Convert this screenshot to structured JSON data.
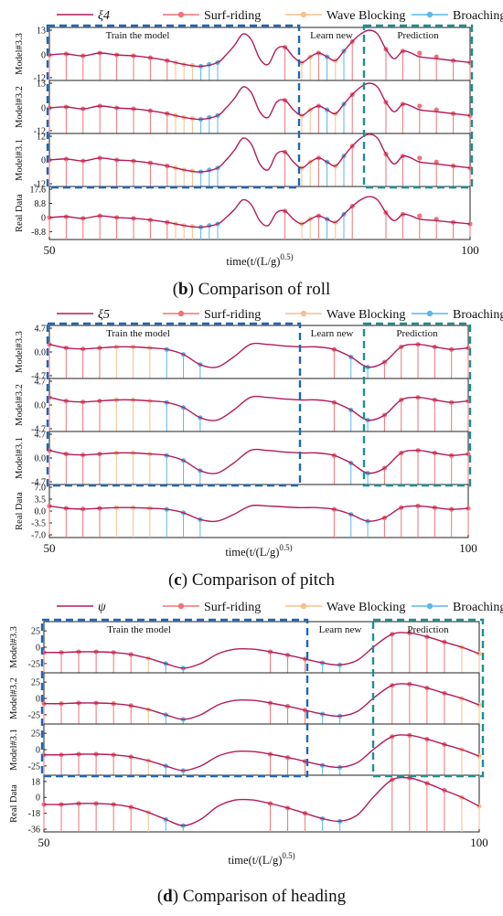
{
  "colors": {
    "xi": "#b31b5c",
    "surf_riding": "#f0737a",
    "wave_blocking": "#f6c08e",
    "broaching": "#5ab8ea",
    "box": "#1f66b3",
    "box_pred": "#1e8f8f"
  },
  "legend": {
    "surf_riding": "Surf-riding",
    "wave_blocking": "Wave Blocking",
    "broaching": "Broaching"
  },
  "chart_data": [
    {
      "type": "line",
      "panel": "b",
      "legend_symbol": "ξ4",
      "caption": "Comparison of roll",
      "xlabel": "time(t/(L/g)^0.5)",
      "x_ticks": [
        "50",
        "100"
      ],
      "xlim": [
        50,
        100
      ],
      "box_labels": [
        "Train the model",
        "Learn new",
        "Prediction"
      ],
      "subplots": [
        {
          "label": "Model#3.3",
          "ticks": [
            "13",
            "0",
            "-12"
          ],
          "ylim": [
            -12,
            13
          ]
        },
        {
          "label": "Model#3.2",
          "ticks": [
            "13",
            "0",
            "-12"
          ],
          "ylim": [
            -12,
            13
          ]
        },
        {
          "label": "Model#3.1",
          "ticks": [
            "12",
            "0",
            "-12"
          ],
          "ylim": [
            -12,
            12
          ]
        },
        {
          "label": "Real Data",
          "ticks": [
            "17.6",
            "8.8",
            "0",
            "-8.8"
          ],
          "ylim": [
            -12,
            17.6
          ]
        }
      ],
      "series": [
        {
          "name": "ξ4",
          "x": [
            50,
            52,
            54,
            56,
            58,
            60,
            62,
            64,
            66,
            68,
            70,
            71,
            72,
            73,
            74,
            75,
            76,
            77,
            78,
            79,
            80,
            81,
            82,
            83,
            84,
            85,
            86,
            87,
            88,
            89,
            90,
            91,
            92,
            93,
            94,
            96,
            98,
            100
          ],
          "y": [
            0,
            0.5,
            -0.5,
            1,
            0,
            -0.5,
            -1.5,
            -3,
            -5,
            -6,
            -4,
            0,
            5,
            11,
            8,
            -2,
            -5,
            3,
            4,
            -1,
            -4,
            -1,
            1,
            -1,
            -3,
            2,
            7,
            11,
            13,
            11,
            3,
            -2,
            2,
            1,
            -1,
            -2,
            -3,
            -4
          ]
        },
        {
          "name": "Surf-riding",
          "x": [
            50,
            52,
            54,
            56,
            58,
            60,
            62,
            64,
            78,
            82,
            86,
            90,
            92,
            94,
            96,
            98,
            100
          ],
          "y": [
            0,
            0.5,
            -0.5,
            1,
            0,
            -0.5,
            -1.5,
            -3,
            4,
            1,
            7,
            3,
            2,
            1,
            -1,
            -3,
            -4
          ]
        },
        {
          "name": "Wave Blocking",
          "x": [
            65,
            66,
            67,
            80,
            81,
            84
          ],
          "y": [
            -4,
            -5,
            -5.5,
            -4,
            -1,
            -3
          ]
        },
        {
          "name": "Broaching",
          "x": [
            68,
            69,
            70,
            83,
            85
          ],
          "y": [
            -6,
            -5,
            -4,
            -1,
            2
          ]
        }
      ]
    },
    {
      "type": "line",
      "panel": "c",
      "legend_symbol": "ξ5",
      "caption": "Comparison of pitch",
      "xlabel": "time(t/(L/g)^0.5)",
      "x_ticks": [
        "50",
        "100"
      ],
      "xlim": [
        50,
        100
      ],
      "box_labels": [
        "Train the model",
        "Learn new",
        "Prediction"
      ],
      "subplots": [
        {
          "label": "Model#3.3",
          "ticks": [
            "4.7",
            "0.0",
            "-4.7"
          ],
          "ylim": [
            -4.7,
            4.7
          ]
        },
        {
          "label": "Model#3.2",
          "ticks": [
            "4.7",
            "0.0",
            "-4.7"
          ],
          "ylim": [
            -4.7,
            4.7
          ]
        },
        {
          "label": "Model#3.1",
          "ticks": [
            "4.7",
            "0.0",
            "-4.7"
          ],
          "ylim": [
            -4.7,
            4.7
          ]
        },
        {
          "label": "Real Data",
          "ticks": [
            "7.0",
            "3.5",
            "0.0",
            "-3.5",
            "-7.0"
          ],
          "ylim": [
            -7,
            7
          ]
        }
      ],
      "series": [
        {
          "name": "ξ5",
          "x": [
            50,
            52,
            54,
            56,
            58,
            60,
            62,
            64,
            66,
            68,
            70,
            72,
            74,
            76,
            78,
            80,
            82,
            84,
            86,
            88,
            90,
            92,
            94,
            96,
            98,
            100
          ],
          "y": [
            1.5,
            0.8,
            0.6,
            0.8,
            1,
            1,
            0.8,
            0.5,
            -0.5,
            -2.5,
            -3,
            -1,
            1.5,
            1.5,
            1.2,
            1,
            1,
            0.5,
            -1,
            -3,
            -2,
            1,
            1.5,
            1,
            0.5,
            0.8
          ]
        },
        {
          "name": "Surf-riding",
          "x": [
            50,
            52,
            54,
            56,
            84,
            90,
            92,
            94,
            96,
            98,
            100
          ],
          "y": [
            1.5,
            0.8,
            0.6,
            0.8,
            0.5,
            -2,
            1,
            1.5,
            1,
            0.5,
            0.8
          ]
        },
        {
          "name": "Wave Blocking",
          "x": [
            58,
            60,
            62
          ],
          "y": [
            1,
            1,
            0.8
          ]
        },
        {
          "name": "Broaching",
          "x": [
            64,
            66,
            68,
            86,
            88
          ],
          "y": [
            0.5,
            -0.5,
            -2.5,
            -1,
            -3
          ]
        }
      ]
    },
    {
      "type": "line",
      "panel": "d",
      "legend_symbol": "ψ",
      "caption": "Comparison of heading",
      "xlabel": "time(t/(L/g)^0.5)",
      "x_ticks": [
        "50",
        "100"
      ],
      "xlim": [
        50,
        100
      ],
      "box_labels": [
        "Train the model",
        "Learn new",
        "Prediction"
      ],
      "subplots": [
        {
          "label": "Model#3.3",
          "ticks": [
            "25",
            "0",
            "-25"
          ],
          "ylim": [
            -35,
            35
          ]
        },
        {
          "label": "Model#3.2",
          "ticks": [
            "25",
            "0",
            "-25"
          ],
          "ylim": [
            -35,
            35
          ]
        },
        {
          "label": "Model#3.1",
          "ticks": [
            "25",
            "0",
            "-25"
          ],
          "ylim": [
            -35,
            35
          ]
        },
        {
          "label": "Real Data",
          "ticks": [
            "18",
            "0",
            "-18",
            "-36"
          ],
          "ylim": [
            -36,
            22
          ]
        }
      ],
      "series": [
        {
          "name": "ψ",
          "x": [
            50,
            52,
            54,
            56,
            58,
            60,
            62,
            64,
            66,
            68,
            70,
            72,
            74,
            76,
            78,
            80,
            82,
            84,
            86,
            88,
            90,
            92,
            94,
            96,
            98,
            100
          ],
          "y": [
            -8,
            -8,
            -7,
            -7,
            -8,
            -11,
            -17,
            -25,
            -32,
            -25,
            -10,
            -3,
            -3,
            -7,
            -12,
            -18,
            -24,
            -27,
            -20,
            2,
            20,
            22,
            16,
            8,
            0,
            -10
          ]
        },
        {
          "name": "Surf-riding",
          "x": [
            50,
            52,
            54,
            56,
            58,
            60,
            76,
            78,
            80,
            90,
            92,
            94,
            96
          ],
          "y": [
            -8,
            -8,
            -7,
            -7,
            -8,
            -11,
            -7,
            -12,
            -18,
            20,
            22,
            16,
            8
          ]
        },
        {
          "name": "Wave Blocking",
          "x": [
            62,
            98,
            100
          ],
          "y": [
            -17,
            0,
            -10
          ]
        },
        {
          "name": "Broaching",
          "x": [
            64,
            66,
            82,
            84
          ],
          "y": [
            -25,
            -32,
            -24,
            -27
          ]
        }
      ]
    }
  ]
}
